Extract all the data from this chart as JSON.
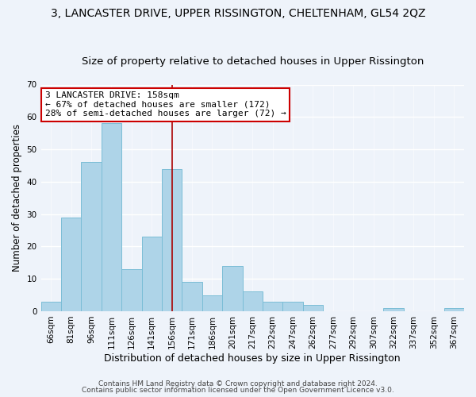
{
  "title": "3, LANCASTER DRIVE, UPPER RISSINGTON, CHELTENHAM, GL54 2QZ",
  "subtitle": "Size of property relative to detached houses in Upper Rissington",
  "xlabel": "Distribution of detached houses by size in Upper Rissington",
  "ylabel": "Number of detached properties",
  "bar_color": "#aed4e8",
  "bar_edge_color": "#7bbdd6",
  "background_color": "#eef3fa",
  "categories": [
    "66sqm",
    "81sqm",
    "96sqm",
    "111sqm",
    "126sqm",
    "141sqm",
    "156sqm",
    "171sqm",
    "186sqm",
    "201sqm",
    "217sqm",
    "232sqm",
    "247sqm",
    "262sqm",
    "277sqm",
    "292sqm",
    "307sqm",
    "322sqm",
    "337sqm",
    "352sqm",
    "367sqm"
  ],
  "values": [
    3,
    29,
    46,
    58,
    13,
    23,
    44,
    9,
    5,
    14,
    6,
    3,
    3,
    2,
    0,
    0,
    0,
    1,
    0,
    0,
    1
  ],
  "ylim": [
    0,
    70
  ],
  "yticks": [
    0,
    10,
    20,
    30,
    40,
    50,
    60,
    70
  ],
  "annotation_box_text": "3 LANCASTER DRIVE: 158sqm\n← 67% of detached houses are smaller (172)\n28% of semi-detached houses are larger (72) →",
  "annotation_box_color": "#ffffff",
  "annotation_box_edge_color": "#cc0000",
  "property_bar_index": 6,
  "property_line_color": "#aa0000",
  "footer_line1": "Contains HM Land Registry data © Crown copyright and database right 2024.",
  "footer_line2": "Contains public sector information licensed under the Open Government Licence v3.0.",
  "title_fontsize": 10,
  "subtitle_fontsize": 9.5,
  "tick_fontsize": 7.5,
  "ylabel_fontsize": 8.5,
  "xlabel_fontsize": 9,
  "ann_fontsize": 8,
  "footer_fontsize": 6.5
}
